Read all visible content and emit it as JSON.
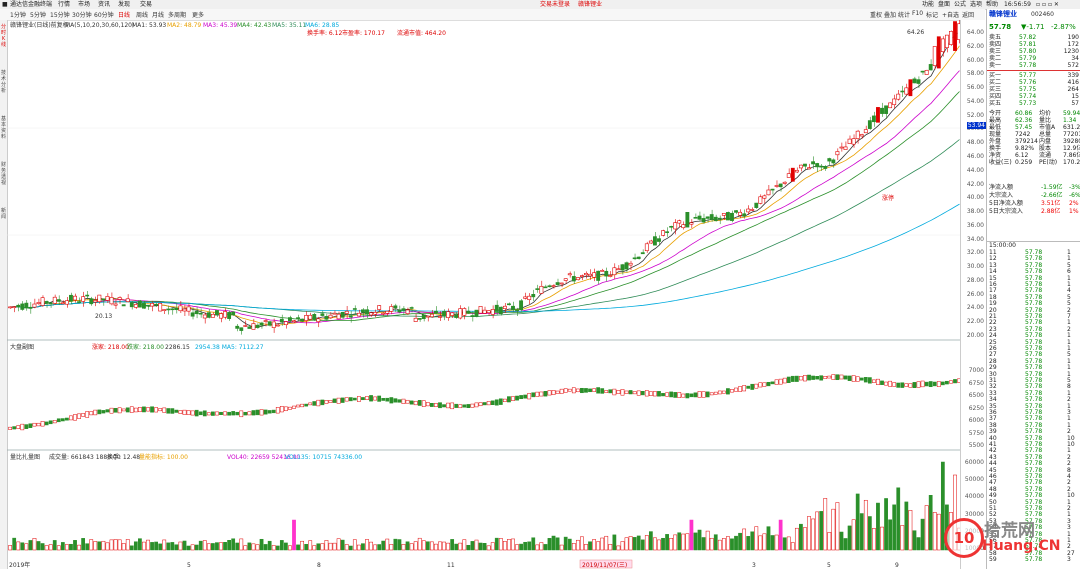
{
  "titlebar": {
    "left": "通达信金融终端",
    "menus": [
      "行情",
      "市场",
      "资讯",
      "发现",
      "交易"
    ],
    "center_left": "交易未登录",
    "center_right": "赣锋锂业",
    "right": [
      "功能",
      "盘面",
      "公式",
      "选项",
      "帮助"
    ],
    "time": "16:56:59"
  },
  "toolbar": {
    "items": [
      "1分钟",
      "5分钟",
      "15分钟",
      "30分钟",
      "60分钟",
      "日线",
      "周线",
      "月线",
      "多周期",
      "更多"
    ],
    "right": [
      "重权",
      "叠加",
      "统计",
      "F10",
      "标记",
      "+自选",
      "返回"
    ],
    "active": "日线"
  },
  "main_chart": {
    "title": "赣锋锂业(日线)前复权",
    "ma_labels": [
      "MA(5,10,20,30,60,120)",
      "MA1: 53.93",
      "MA2: 48.79",
      "MA3: 45.39",
      "MA4: 42.43",
      "MA5: 35.11",
      "MA6: 28.85"
    ],
    "extra_labels": [
      "换手率: 6.12",
      "市盈率: 170.17",
      "流通市值: 464.20"
    ],
    "price_axis": [
      "64.00",
      "62.00",
      "60.00",
      "58.00",
      "56.00",
      "54.00",
      "52.00",
      "50.00",
      "48.00",
      "46.00",
      "44.00",
      "42.00",
      "40.00",
      "38.00",
      "36.00",
      "34.00",
      "32.00",
      "30.00",
      "28.00",
      "26.00",
      "24.00",
      "22.00",
      "20.00"
    ],
    "current_label": "53.94",
    "high_label": "64.26",
    "low_label": "20.13",
    "annotation": "涨停"
  },
  "index_chart": {
    "title": "大盘副图",
    "labels": [
      "涨家: 218.00",
      "跌家: 218.00",
      "2286.15",
      "2954.38 MA5: 7112.27"
    ],
    "axis": [
      "7000",
      "6750",
      "6500",
      "6250",
      "6000",
      "5750",
      "5500"
    ]
  },
  "volume_chart": {
    "title": "量比扎量图",
    "labels": [
      "成交量: 661843 1888.00",
      "换手: 12.48",
      "量能指标: 100.00",
      "VOL40: 22659 52416.00",
      "VOL135: 10715 74336.00"
    ],
    "axis": [
      "60000",
      "50000",
      "40000",
      "30000",
      "20000",
      "10000"
    ]
  },
  "date_axis": [
    "2019年",
    "5",
    "8",
    "11",
    "2019/11/07(三)",
    "3",
    "5",
    "9"
  ],
  "stock": {
    "name": "赣锋锂业",
    "code": "002460",
    "price": "57.78",
    "change": "▼-1.71",
    "pct": "-2.87%"
  },
  "asks": [
    [
      "卖五",
      "57.82",
      "190"
    ],
    [
      "卖四",
      "57.81",
      "172"
    ],
    [
      "卖三",
      "57.80",
      "1230"
    ],
    [
      "卖二",
      "57.79",
      "34"
    ],
    [
      "卖一",
      "57.78",
      "572"
    ]
  ],
  "bids": [
    [
      "买一",
      "57.77",
      "339"
    ],
    [
      "买二",
      "57.76",
      "416"
    ],
    [
      "买三",
      "57.75",
      "264"
    ],
    [
      "买四",
      "57.74",
      "15"
    ],
    [
      "买五",
      "57.73",
      "57"
    ]
  ],
  "stats": [
    [
      "今开",
      "60.86",
      "均价",
      "59.94"
    ],
    [
      "最高",
      "62.36",
      "量比",
      "1.34"
    ],
    [
      "最低",
      "57.45",
      "市值A",
      "631.2亿"
    ],
    [
      "现量",
      "7242",
      "总量",
      "772018"
    ],
    [
      "外盘",
      "379214",
      "内盘",
      "392804"
    ],
    [
      "换手",
      "9.82%",
      "股本",
      "12.9亿"
    ],
    [
      "净资",
      "6.12",
      "流通",
      "7.86亿"
    ],
    [
      "收益(三)",
      "0.259",
      "PE(动)",
      "170.2"
    ]
  ],
  "fundflow": [
    [
      "净流入额",
      "-1.59亿",
      "-3%"
    ],
    [
      "大宗流入",
      "-2.66亿",
      "-6%"
    ],
    [
      "5日净流入额",
      "3.51亿",
      "2%"
    ],
    [
      "5日大宗流入",
      "2.88亿",
      "1%"
    ]
  ],
  "ticks_header": "15:00:00",
  "ticks": [
    [
      "11",
      "57.78",
      "1"
    ],
    [
      "12",
      "57.78",
      "1"
    ],
    [
      "13",
      "57.78",
      "5"
    ],
    [
      "14",
      "57.78",
      "6"
    ],
    [
      "15",
      "57.78",
      "1"
    ],
    [
      "16",
      "57.78",
      "1"
    ],
    [
      "17",
      "57.78",
      "4"
    ],
    [
      "18",
      "57.78",
      "5"
    ],
    [
      "19",
      "57.78",
      "5"
    ],
    [
      "20",
      "57.78",
      "2"
    ],
    [
      "21",
      "57.78",
      "7"
    ],
    [
      "22",
      "57.78",
      "1"
    ],
    [
      "23",
      "57.78",
      "2"
    ],
    [
      "24",
      "57.78",
      "1"
    ],
    [
      "25",
      "57.78",
      "1"
    ],
    [
      "26",
      "57.78",
      "1"
    ],
    [
      "27",
      "57.78",
      "5"
    ],
    [
      "28",
      "57.78",
      "1"
    ],
    [
      "29",
      "57.78",
      "1"
    ],
    [
      "30",
      "57.78",
      "1"
    ],
    [
      "31",
      "57.78",
      "5"
    ],
    [
      "32",
      "57.78",
      "8"
    ],
    [
      "33",
      "57.78",
      "1"
    ],
    [
      "34",
      "57.78",
      "2"
    ],
    [
      "35",
      "57.78",
      "1"
    ],
    [
      "36",
      "57.78",
      "3"
    ],
    [
      "37",
      "57.78",
      "1"
    ],
    [
      "38",
      "57.78",
      "1"
    ],
    [
      "39",
      "57.78",
      "2"
    ],
    [
      "40",
      "57.78",
      "10"
    ],
    [
      "41",
      "57.78",
      "10"
    ],
    [
      "42",
      "57.78",
      "1"
    ],
    [
      "43",
      "57.78",
      "2"
    ],
    [
      "44",
      "57.78",
      "2"
    ],
    [
      "45",
      "57.78",
      "8"
    ],
    [
      "46",
      "57.78",
      "4"
    ],
    [
      "47",
      "57.78",
      "2"
    ],
    [
      "48",
      "57.78",
      "2"
    ],
    [
      "49",
      "57.78",
      "10"
    ],
    [
      "50",
      "57.78",
      "1"
    ],
    [
      "51",
      "57.78",
      "2"
    ],
    [
      "52",
      "57.78",
      "1"
    ],
    [
      "53",
      "57.78",
      "3"
    ],
    [
      "54",
      "57.78",
      "3"
    ],
    [
      "55",
      "57.78",
      "1"
    ],
    [
      "56",
      "57.78",
      "1"
    ],
    [
      "57",
      "57.78",
      "2"
    ],
    [
      "58",
      "57.78",
      "27"
    ],
    [
      "59",
      "57.78",
      "3"
    ]
  ],
  "watermark": {
    "cn": "拾荒网",
    "en": "Huang.CN",
    "badge": "10"
  },
  "colors": {
    "up": "#e00000",
    "down": "#2a8f2a",
    "volpink": "#ff33cc",
    "ma5": "#333",
    "ma10": "#e8a000",
    "ma20": "#cc00cc",
    "ma30": "#2a8f2a",
    "ma60": "#2e8b57",
    "ma120": "#00aadd"
  }
}
